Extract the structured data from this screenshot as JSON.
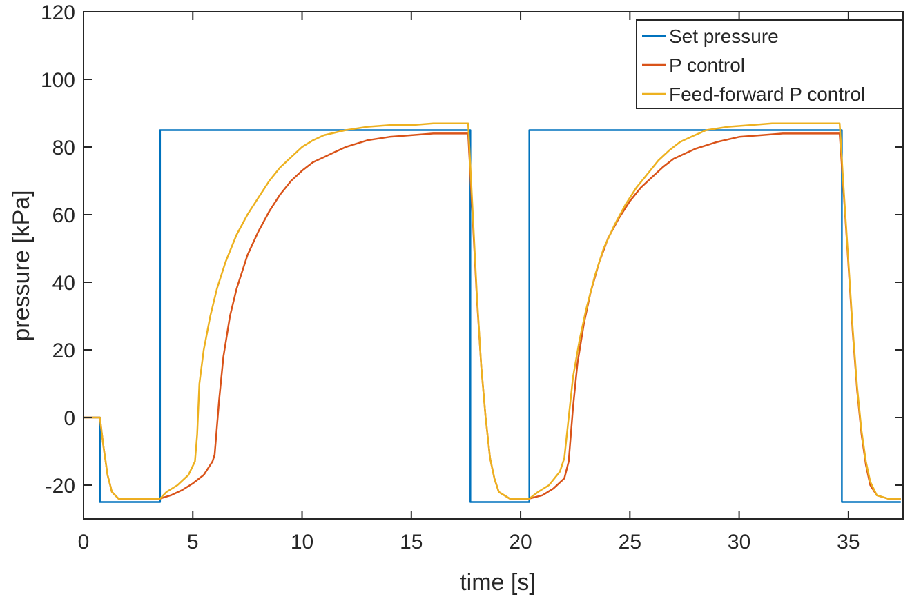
{
  "chart_data": {
    "type": "line",
    "title": "",
    "xlabel": "time [s]",
    "ylabel": "pressure [kPa]",
    "xlim": [
      0,
      37.5
    ],
    "ylim": [
      -30,
      120
    ],
    "xticks": [
      0,
      5,
      10,
      15,
      20,
      25,
      30,
      35
    ],
    "yticks": [
      -20,
      0,
      20,
      40,
      60,
      80,
      100,
      120
    ],
    "grid": false,
    "legend_position": "top-right",
    "series": [
      {
        "name": "Set pressure",
        "color": "#0072BD",
        "points": [
          [
            0,
            0
          ],
          [
            0.75,
            0
          ],
          [
            0.75,
            -25
          ],
          [
            3.5,
            -25
          ],
          [
            3.5,
            85
          ],
          [
            17.7,
            85
          ],
          [
            17.7,
            -25
          ],
          [
            20.4,
            -25
          ],
          [
            20.4,
            85
          ],
          [
            34.7,
            85
          ],
          [
            34.7,
            -25
          ],
          [
            37.4,
            -25
          ]
        ]
      },
      {
        "name": "P control",
        "color": "#D95319",
        "points": [
          [
            0,
            0
          ],
          [
            0.75,
            0
          ],
          [
            0.9,
            -8
          ],
          [
            1.1,
            -17
          ],
          [
            1.3,
            -22
          ],
          [
            1.6,
            -24
          ],
          [
            2.0,
            -24
          ],
          [
            3.5,
            -24
          ],
          [
            4.0,
            -23
          ],
          [
            4.5,
            -21.5
          ],
          [
            5.0,
            -19.5
          ],
          [
            5.5,
            -17
          ],
          [
            5.9,
            -13
          ],
          [
            6.0,
            -11
          ],
          [
            6.2,
            5
          ],
          [
            6.4,
            18
          ],
          [
            6.7,
            30
          ],
          [
            7.0,
            38
          ],
          [
            7.5,
            48
          ],
          [
            8.0,
            55
          ],
          [
            8.5,
            61
          ],
          [
            9.0,
            66
          ],
          [
            9.5,
            70
          ],
          [
            10.0,
            73
          ],
          [
            10.5,
            75.5
          ],
          [
            11.0,
            77
          ],
          [
            11.5,
            78.5
          ],
          [
            12.0,
            80
          ],
          [
            12.5,
            81
          ],
          [
            13.0,
            82
          ],
          [
            14.0,
            83
          ],
          [
            15.0,
            83.5
          ],
          [
            16.0,
            84
          ],
          [
            17.0,
            84
          ],
          [
            17.6,
            84
          ],
          [
            17.8,
            60
          ],
          [
            18.0,
            35
          ],
          [
            18.2,
            15
          ],
          [
            18.4,
            0
          ],
          [
            18.6,
            -12
          ],
          [
            18.8,
            -18
          ],
          [
            19.0,
            -22
          ],
          [
            19.5,
            -24
          ],
          [
            20.4,
            -24
          ],
          [
            21.0,
            -23
          ],
          [
            21.5,
            -21
          ],
          [
            22.0,
            -18
          ],
          [
            22.2,
            -13
          ],
          [
            22.4,
            3
          ],
          [
            22.6,
            16
          ],
          [
            22.9,
            28
          ],
          [
            23.2,
            37
          ],
          [
            23.6,
            46
          ],
          [
            24.0,
            53
          ],
          [
            24.5,
            59
          ],
          [
            25.0,
            64
          ],
          [
            25.5,
            68
          ],
          [
            26.0,
            71
          ],
          [
            26.5,
            74
          ],
          [
            27.0,
            76.5
          ],
          [
            27.5,
            78
          ],
          [
            28.0,
            79.5
          ],
          [
            29.0,
            81.5
          ],
          [
            30.0,
            83
          ],
          [
            31.0,
            83.5
          ],
          [
            32.0,
            84
          ],
          [
            33.0,
            84
          ],
          [
            34.0,
            84
          ],
          [
            34.6,
            84
          ],
          [
            34.8,
            65
          ],
          [
            35.0,
            45
          ],
          [
            35.2,
            25
          ],
          [
            35.4,
            8
          ],
          [
            35.6,
            -5
          ],
          [
            35.8,
            -14
          ],
          [
            36.0,
            -20
          ],
          [
            36.3,
            -23
          ],
          [
            36.8,
            -24
          ],
          [
            37.4,
            -24
          ]
        ]
      },
      {
        "name": "Feed-forward P control",
        "color": "#EDB120",
        "points": [
          [
            0,
            0
          ],
          [
            0.75,
            0
          ],
          [
            0.9,
            -8
          ],
          [
            1.1,
            -17
          ],
          [
            1.3,
            -22
          ],
          [
            1.6,
            -24
          ],
          [
            2.0,
            -24
          ],
          [
            3.5,
            -24
          ],
          [
            3.8,
            -22
          ],
          [
            4.3,
            -20
          ],
          [
            4.8,
            -17
          ],
          [
            5.1,
            -13
          ],
          [
            5.2,
            -5
          ],
          [
            5.3,
            10
          ],
          [
            5.5,
            20
          ],
          [
            5.8,
            30
          ],
          [
            6.1,
            38
          ],
          [
            6.5,
            46
          ],
          [
            7.0,
            54
          ],
          [
            7.5,
            60
          ],
          [
            8.0,
            65
          ],
          [
            8.5,
            70
          ],
          [
            9.0,
            74
          ],
          [
            9.5,
            77
          ],
          [
            10.0,
            80
          ],
          [
            10.5,
            82
          ],
          [
            11.0,
            83.5
          ],
          [
            12.0,
            85
          ],
          [
            13.0,
            86
          ],
          [
            14.0,
            86.5
          ],
          [
            15.0,
            86.5
          ],
          [
            16.0,
            87
          ],
          [
            17.0,
            87
          ],
          [
            17.6,
            87
          ],
          [
            17.8,
            62
          ],
          [
            18.0,
            36
          ],
          [
            18.2,
            15
          ],
          [
            18.4,
            0
          ],
          [
            18.6,
            -12
          ],
          [
            18.8,
            -18
          ],
          [
            19.0,
            -22
          ],
          [
            19.5,
            -24
          ],
          [
            20.4,
            -24
          ],
          [
            20.8,
            -22
          ],
          [
            21.3,
            -20
          ],
          [
            21.8,
            -16
          ],
          [
            22.0,
            -12
          ],
          [
            22.2,
            0
          ],
          [
            22.4,
            12
          ],
          [
            22.7,
            23
          ],
          [
            23.0,
            32
          ],
          [
            23.4,
            42
          ],
          [
            23.8,
            50
          ],
          [
            24.3,
            57
          ],
          [
            24.8,
            63
          ],
          [
            25.3,
            68
          ],
          [
            25.8,
            72
          ],
          [
            26.3,
            76
          ],
          [
            26.8,
            79
          ],
          [
            27.3,
            81.5
          ],
          [
            27.8,
            83
          ],
          [
            28.5,
            85
          ],
          [
            29.5,
            86
          ],
          [
            30.5,
            86.5
          ],
          [
            31.5,
            87
          ],
          [
            32.5,
            87
          ],
          [
            33.5,
            87
          ],
          [
            34.6,
            87
          ],
          [
            34.8,
            66
          ],
          [
            35.0,
            46
          ],
          [
            35.2,
            26
          ],
          [
            35.4,
            9
          ],
          [
            35.6,
            -4
          ],
          [
            35.8,
            -13
          ],
          [
            36.0,
            -19
          ],
          [
            36.3,
            -23
          ],
          [
            36.8,
            -24
          ],
          [
            37.4,
            -24
          ]
        ]
      }
    ]
  }
}
